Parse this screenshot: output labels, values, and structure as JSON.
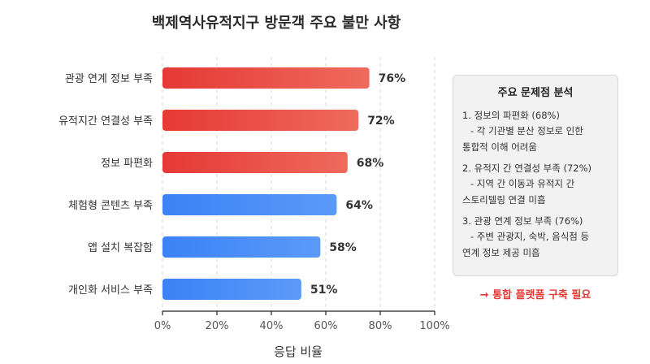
{
  "chart_data": {
    "type": "bar",
    "orientation": "horizontal",
    "title": "백제역사유적지구 방문객 주요 불만 사항",
    "xlabel": "응답 비율",
    "ylabel": "",
    "xlim": [
      0,
      100
    ],
    "x_ticks": [
      "0%",
      "20%",
      "40%",
      "60%",
      "80%",
      "100%"
    ],
    "categories": [
      "관광 연계 정보 부족",
      "유적지간 연결성 부족",
      "정보 파편화",
      "체험형 콘텐츠 부족",
      "앱 설치 복잡함",
      "개인화 서비스 부족"
    ],
    "values": [
      76,
      72,
      68,
      64,
      58,
      51
    ],
    "value_labels": [
      "76%",
      "72%",
      "68%",
      "64%",
      "58%",
      "51%"
    ],
    "bar_colors": [
      "#e53935",
      "#e53935",
      "#e53935",
      "#3b82f6",
      "#3b82f6",
      "#3b82f6"
    ],
    "grid": true
  },
  "analysis": {
    "title": "주요 문제점 분석",
    "items": [
      {
        "heading": "1. 정보의 파편화 (68%)",
        "detail_1": "- 각 기관별 분산 정보로 인한",
        "detail_2": "통합적 이해 어려움"
      },
      {
        "heading": "2. 유적지 간 연결성 부족 (72%)",
        "detail_1": "- 지역 간 이동과 유적지 간",
        "detail_2": "스토리텔링 연결 미흡"
      },
      {
        "heading": "3. 관광 연계 정보 부족 (76%)",
        "detail_1": "- 주변 관광지, 숙박, 음식점 등",
        "detail_2": "연계 정보 제공 미흡"
      }
    ],
    "conclusion": "→ 통합 플랫폼 구축 필요"
  },
  "colors": {
    "red": "#e53935",
    "blue": "#3b82f6"
  }
}
